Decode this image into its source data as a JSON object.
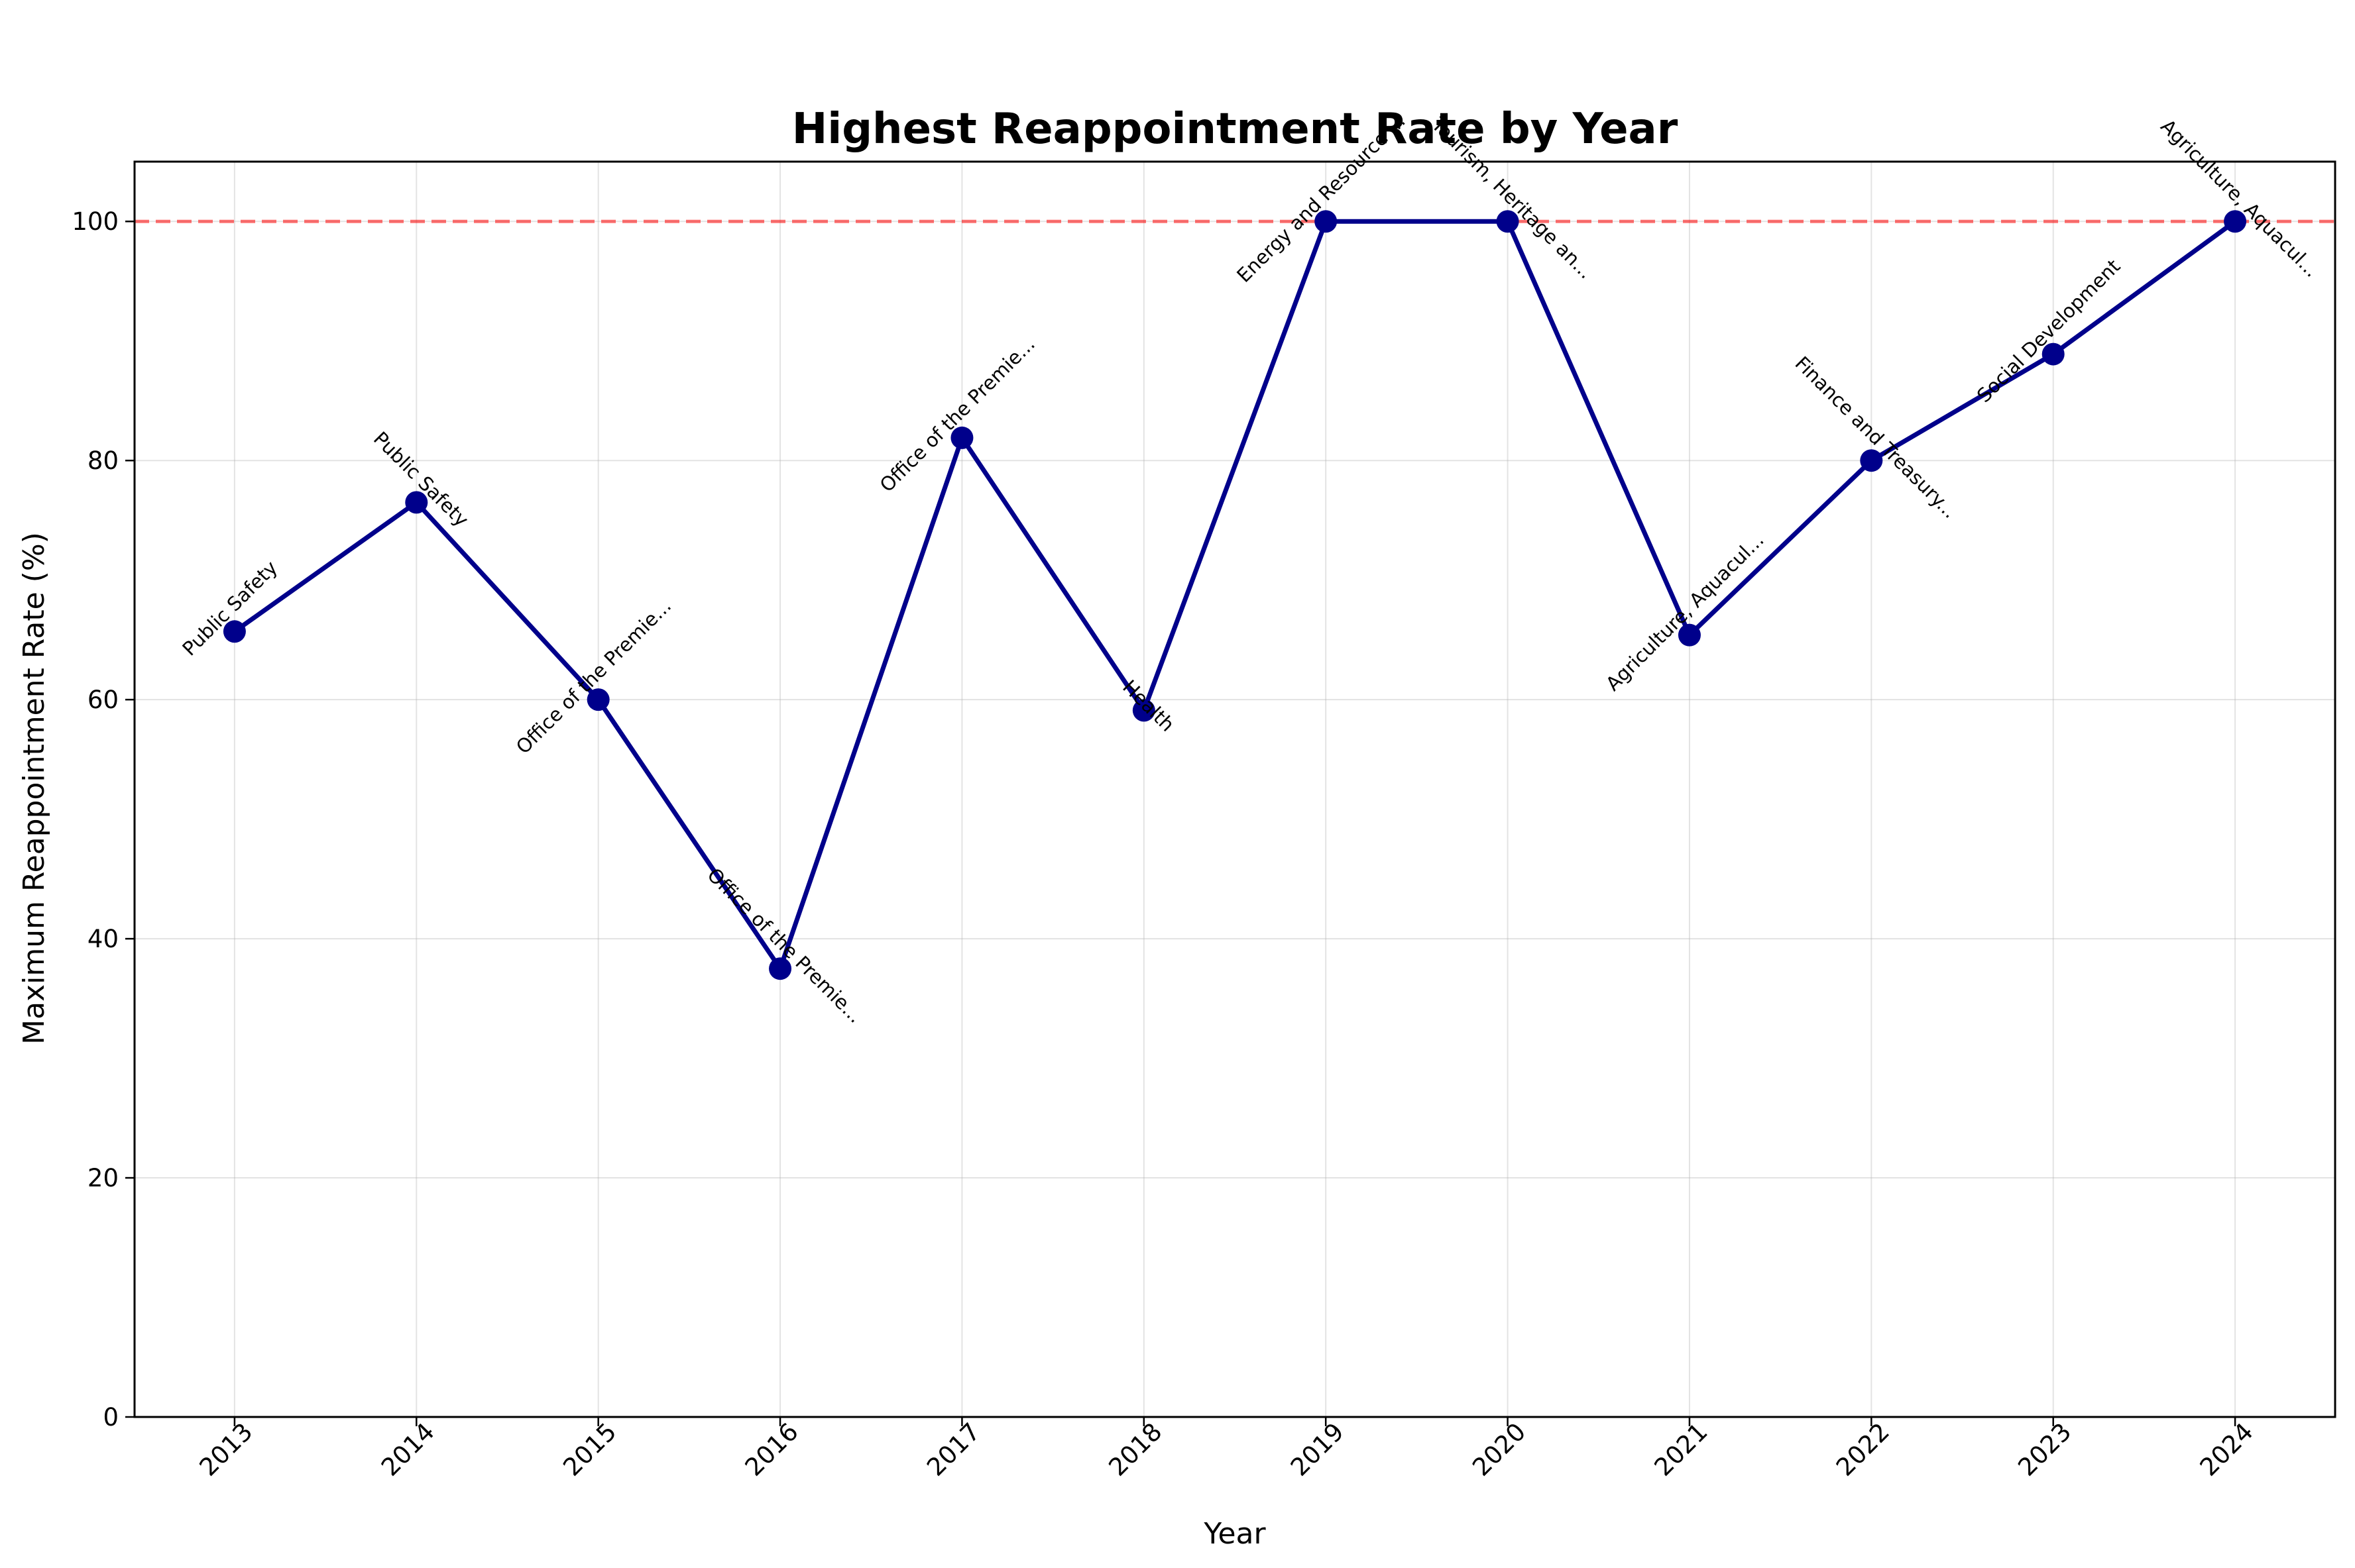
{
  "chart_data": {
    "type": "line",
    "title": "Highest Reappointment Rate by Year",
    "xlabel": "Year",
    "ylabel": "Maximum Reappointment Rate (%)",
    "x": [
      2013,
      2014,
      2015,
      2016,
      2017,
      2018,
      2019,
      2020,
      2021,
      2022,
      2023,
      2024
    ],
    "x_tick_labels": [
      "2013",
      "2014",
      "2015",
      "2016",
      "2017",
      "2018",
      "2019",
      "2020",
      "2021",
      "2022",
      "2023",
      "2024"
    ],
    "y_tick_values": [
      0,
      20,
      40,
      60,
      80,
      100
    ],
    "y_tick_labels": [
      "0",
      "20",
      "40",
      "60",
      "80",
      "100"
    ],
    "ylim": [
      0,
      105
    ],
    "xlim": [
      2012.45,
      2024.55
    ],
    "series": [
      {
        "values": [
          65.7,
          76.5,
          60.0,
          37.5,
          81.9,
          59.1,
          100.0,
          100.0,
          65.4,
          80.0,
          88.9,
          100.0
        ],
        "color": "#00008b"
      }
    ],
    "annotations": [
      {
        "text": "Public Safety",
        "angle": -45,
        "side": "above"
      },
      {
        "text": "Public Safety",
        "angle": 45,
        "side": "above"
      },
      {
        "text": "Office of the Premie...",
        "angle": -45,
        "side": "above"
      },
      {
        "text": "Office of the Premie...",
        "angle": 45,
        "side": "above"
      },
      {
        "text": "Office of the Premie...",
        "angle": -45,
        "side": "above"
      },
      {
        "text": "Health",
        "angle": 45,
        "side": "center"
      },
      {
        "text": "Energy and Resource ...",
        "angle": -45,
        "side": "above"
      },
      {
        "text": "Tourism, Heritage an...",
        "angle": 45,
        "side": "above"
      },
      {
        "text": "Agriculture, Aquacul...",
        "angle": -45,
        "side": "above"
      },
      {
        "text": "Finance and Treasury...",
        "angle": 45,
        "side": "above"
      },
      {
        "text": "Social Development",
        "angle": -45,
        "side": "above"
      },
      {
        "text": "Agriculture, Aquacul...",
        "angle": 45,
        "side": "above"
      }
    ],
    "reference_line": {
      "value": 100,
      "style": "dashed",
      "color": "#ff0000"
    },
    "grid": true,
    "line_color": "#00008b"
  }
}
